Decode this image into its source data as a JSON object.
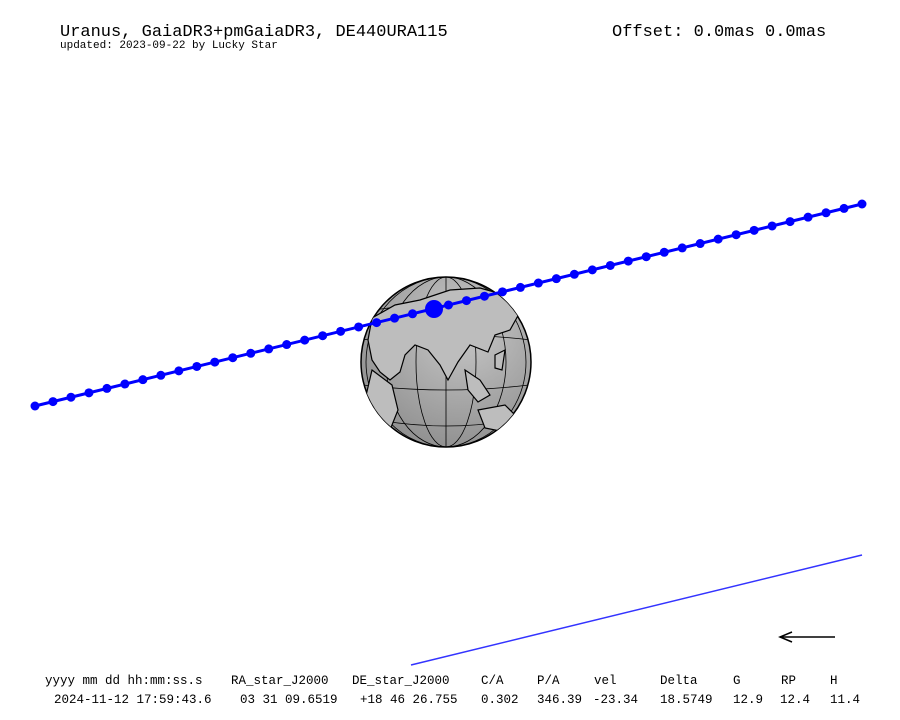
{
  "header": {
    "title": "Uranus, GaiaDR3+pmGaiaDR3, DE440URA115",
    "updated": "updated: 2023-09-22 by Lucky Star",
    "offset": "Offset: 0.0mas 0.0mas"
  },
  "table": {
    "columns": [
      "yyyy mm dd hh:mm:ss.s",
      "RA_star_J2000",
      "DE_star_J2000",
      "C/A",
      "P/A",
      "vel",
      "Delta",
      "G",
      "RP",
      "H"
    ],
    "rows": [
      [
        "2024-11-12 17:59:43.6",
        "03 31 09.6519",
        "+18 46 26.755",
        "0.302",
        "346.39",
        "-23.34",
        "18.5749",
        "12.9",
        "12.4",
        "11.4"
      ]
    ]
  }
}
